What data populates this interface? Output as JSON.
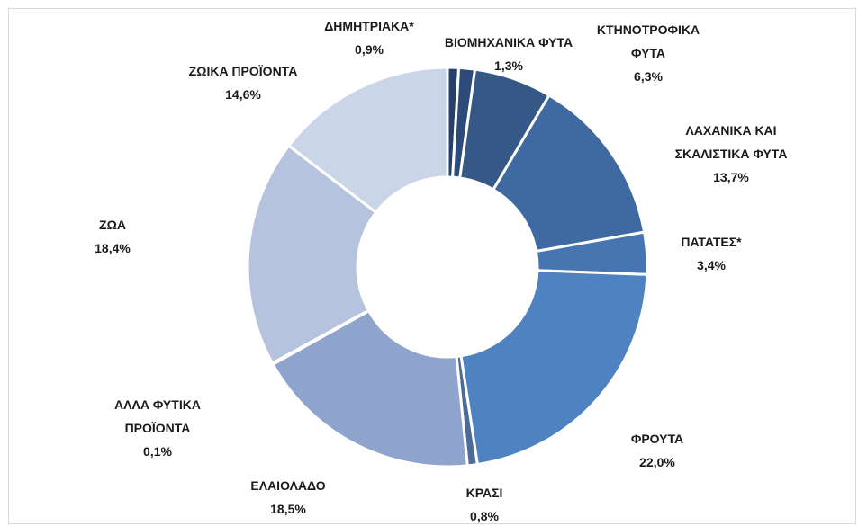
{
  "chart_data": {
    "type": "donut",
    "categories": [
      "ΔΗΜΗΤΡΙΑΚΑ*",
      "ΒΙΟΜΗΧΑΝΙΚΑ ΦΥΤΑ",
      "ΚΤΗΝΟΤΡΟΦΙΚΑ ΦΥΤΑ",
      "ΛΑΧΑΝΙΚΑ ΚΑΙ ΣΚΑΛΙΣΤΙΚΑ ΦΥΤΑ",
      "ΠΑΤΑΤΕΣ*",
      "ΦΡΟΥΤΑ",
      "ΚΡΑΣΙ",
      "ΕΛΑΙΟΛΑΔΟ",
      "ΑΛΛΑ ΦΥΤΙΚΑ ΠΡΟΪΟΝΤΑ",
      "ΖΩΑ",
      "ΖΩΙΚΑ ΠΡΟΪΟΝΤΑ"
    ],
    "values": [
      0.9,
      1.3,
      6.3,
      13.7,
      3.4,
      22.0,
      0.8,
      18.5,
      0.1,
      18.4,
      14.6
    ],
    "value_labels": [
      "0,9%",
      "1,3%",
      "6,3%",
      "13,7%",
      "3,4%",
      "22,0%",
      "0,8%",
      "18,5%",
      "0,1%",
      "18,4%",
      "14,6%"
    ],
    "colors": [
      "#26406b",
      "#2c4a7a",
      "#355887",
      "#3f6aa1",
      "#4775b0",
      "#4f82c0",
      "#4d6b98",
      "#8fa4cc",
      "#a4b4d6",
      "#b6c3de",
      "#cbd5e8"
    ]
  }
}
